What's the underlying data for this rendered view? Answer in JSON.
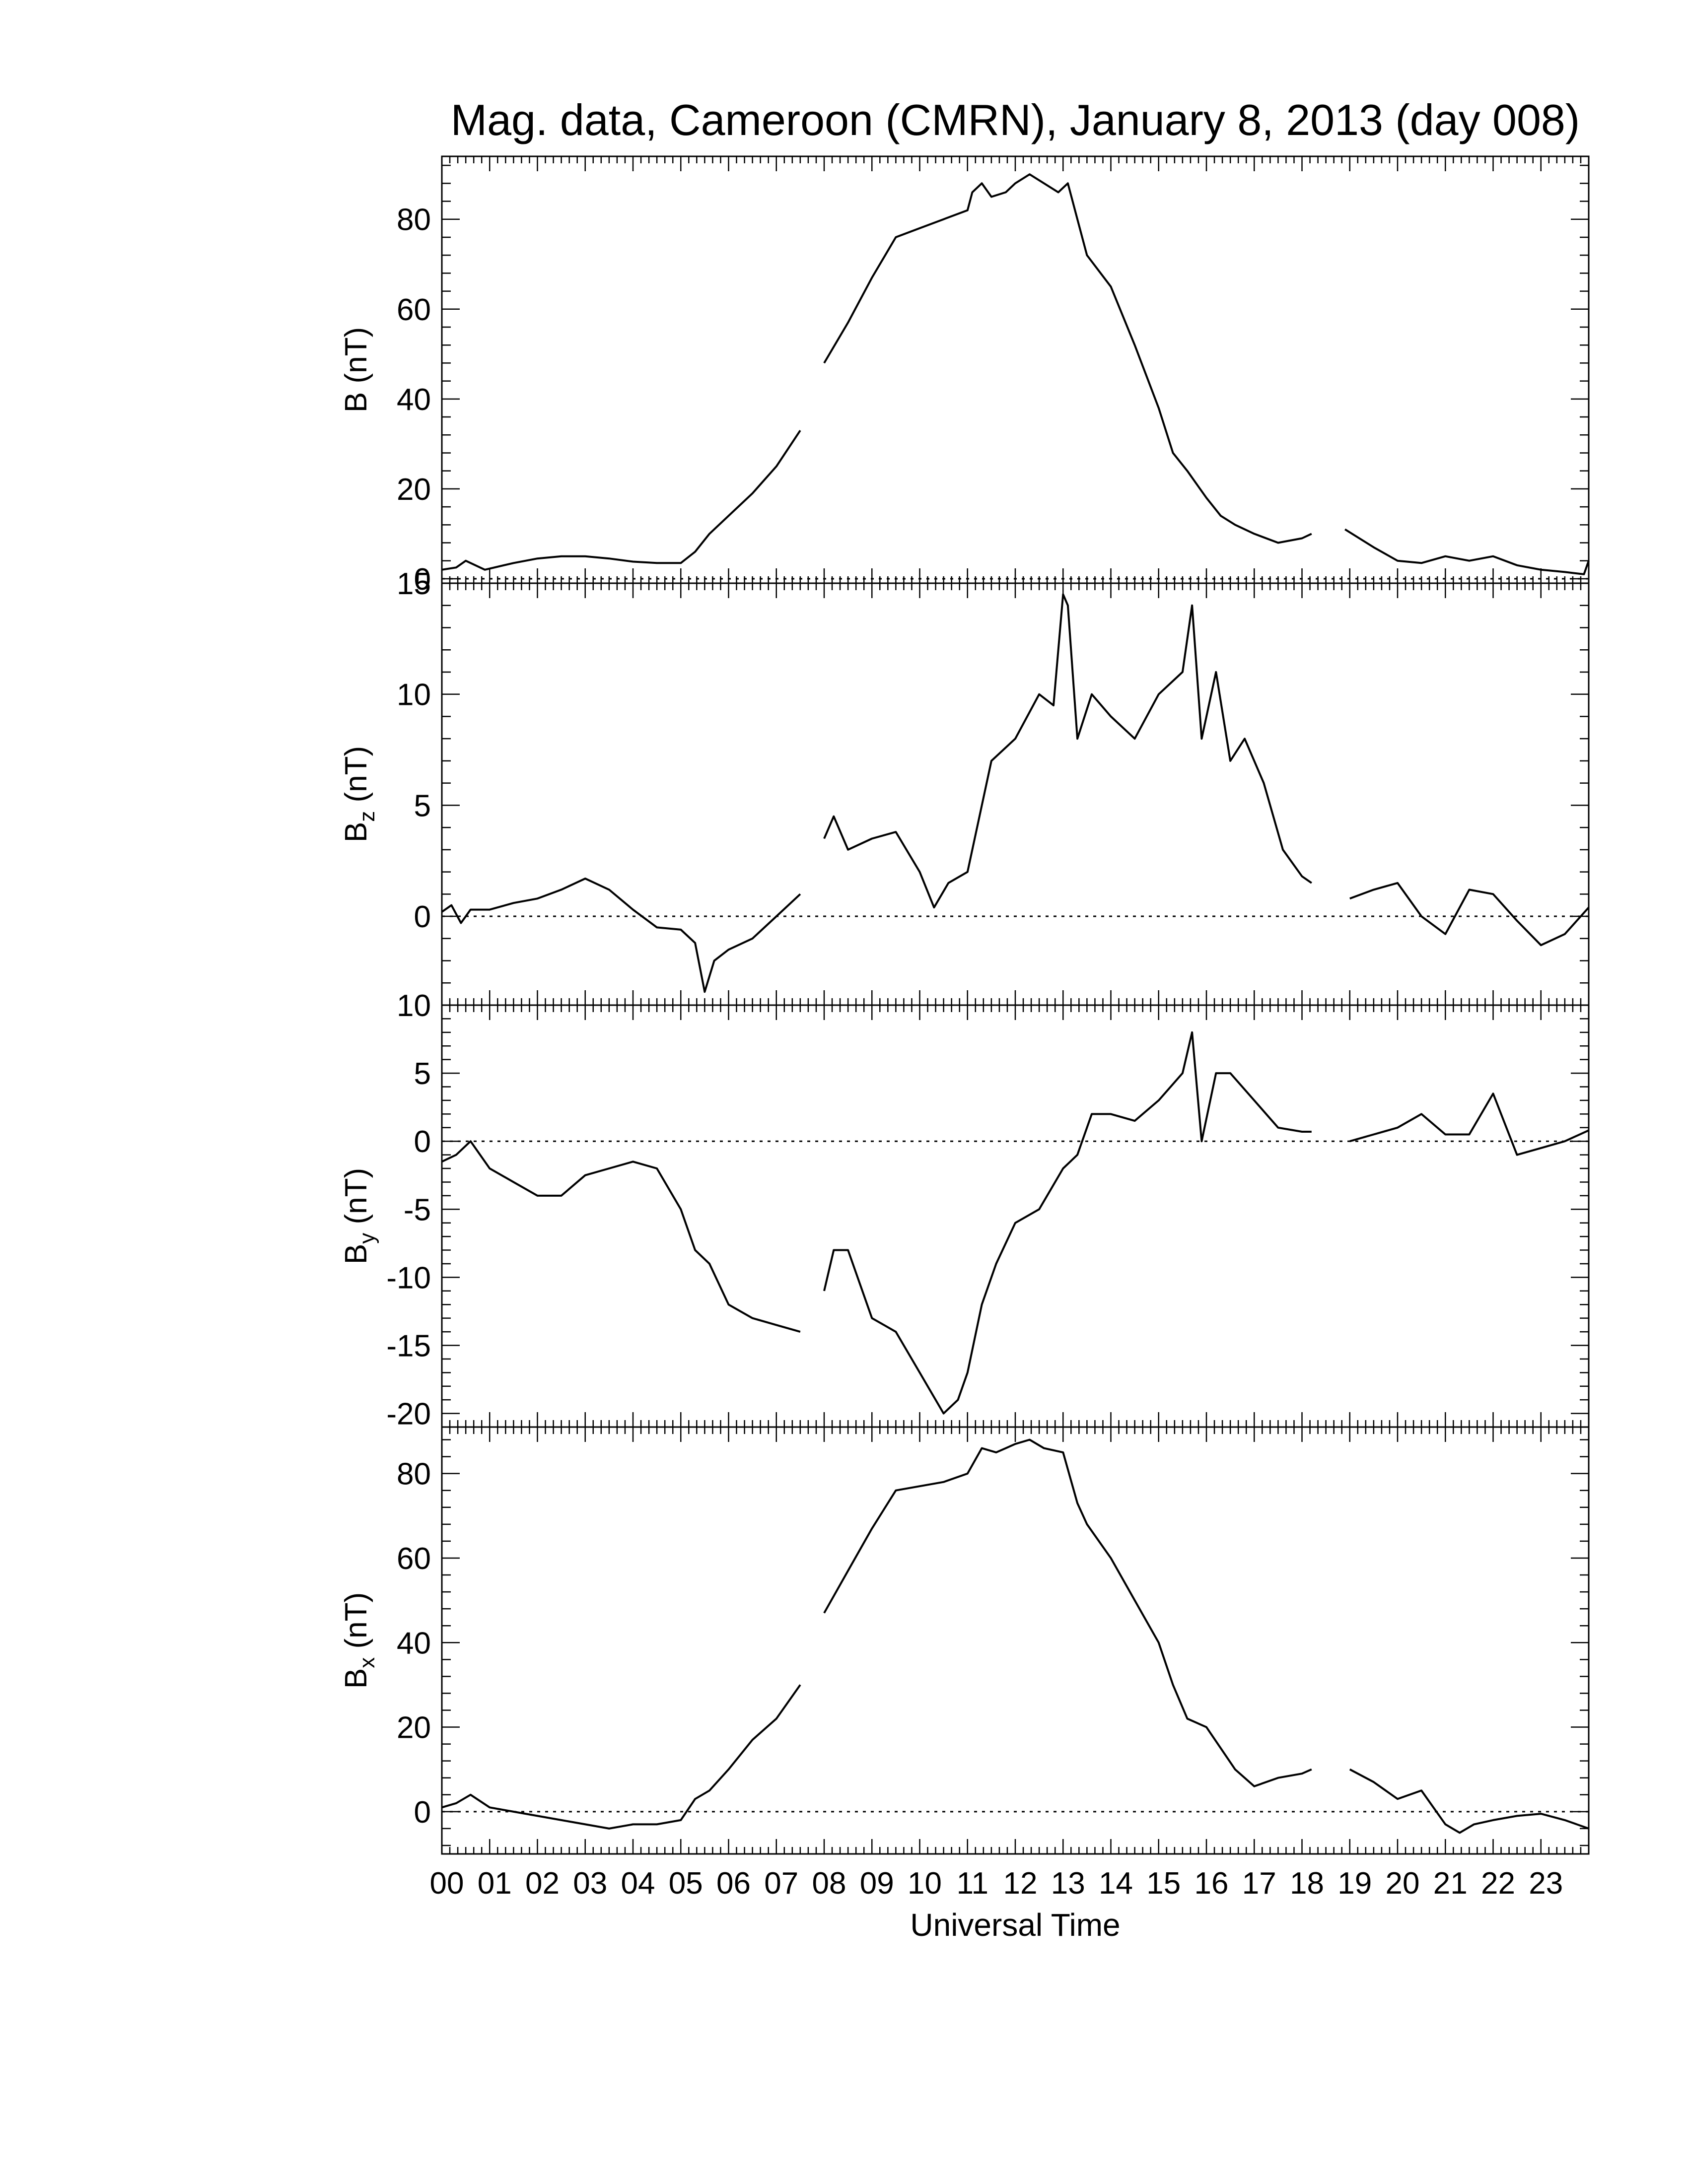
{
  "figure": {
    "title": "Mag. data, Cameroon (CMRN), January 8, 2013 (day 008)",
    "xlabel": "Universal Time",
    "x_tick_labels": [
      "00",
      "01",
      "02",
      "03",
      "04",
      "05",
      "06",
      "07",
      "08",
      "09",
      "10",
      "11",
      "12",
      "13",
      "14",
      "15",
      "16",
      "17",
      "18",
      "19",
      "20",
      "21",
      "22",
      "23"
    ],
    "line_color": "#000000",
    "zero_line": "dotted"
  },
  "chart_data": [
    {
      "type": "line",
      "panel": "B",
      "ylabel": "B (nT)",
      "ylim": [
        -1,
        94
      ],
      "y_ticks": [
        0,
        20,
        40,
        60,
        80
      ],
      "y_tick_labels": [
        "0",
        "20",
        "40",
        "60",
        "80"
      ],
      "x_unit": "hours UT",
      "xlim": [
        0,
        24
      ],
      "segments": [
        {
          "x": [
            0,
            0.3,
            0.5,
            0.9,
            1.5,
            2,
            2.5,
            3,
            3.5,
            4,
            4.5,
            5,
            5.3,
            5.6,
            6,
            6.5,
            7,
            7.5
          ],
          "y": [
            2,
            2.5,
            4,
            2,
            3.5,
            4.5,
            5,
            5,
            4.5,
            3.8,
            3.5,
            3.5,
            6,
            10,
            14,
            19,
            25,
            33
          ]
        },
        {
          "x": [
            8,
            8.5,
            9,
            9.5,
            10,
            10.5,
            11,
            11.1,
            11.3,
            11.5,
            11.8,
            12,
            12.3,
            12.6,
            12.9,
            13.1,
            13.3,
            13.5,
            14,
            14.5,
            15,
            15.3,
            15.6,
            16,
            16.3,
            16.6,
            17,
            17.5,
            18,
            18.2
          ],
          "y": [
            48,
            57,
            67,
            76,
            78,
            80,
            82,
            86,
            88,
            85,
            86,
            88,
            90,
            88,
            86,
            88,
            80,
            72,
            65,
            52,
            38,
            28,
            24,
            18,
            14,
            12,
            10,
            8,
            9,
            10
          ]
        },
        {
          "x": [
            18.9,
            19.5,
            20,
            20.5,
            21,
            21.5,
            22,
            22.5,
            23,
            23.5,
            23.9,
            24
          ],
          "y": [
            11,
            7,
            4,
            3.5,
            5,
            4,
            5,
            3,
            2,
            1.5,
            1,
            4
          ]
        }
      ]
    },
    {
      "type": "line",
      "panel": "Bz",
      "ylabel": "B",
      "ylabel_sub": "z",
      "ylabel_unit": " (nT)",
      "ylim": [
        -4,
        15
      ],
      "y_ticks": [
        0,
        5,
        10,
        15
      ],
      "y_tick_labels": [
        "0",
        "5",
        "10",
        "15"
      ],
      "x_unit": "hours UT",
      "xlim": [
        0,
        24
      ],
      "segments": [
        {
          "x": [
            0,
            0.2,
            0.4,
            0.6,
            1,
            1.5,
            2,
            2.5,
            3,
            3.5,
            4,
            4.5,
            5,
            5.3,
            5.5,
            5.7,
            6,
            6.5,
            7,
            7.5
          ],
          "y": [
            0.2,
            0.5,
            -0.3,
            0.3,
            0.3,
            0.6,
            0.8,
            1.2,
            1.7,
            1.2,
            0.3,
            -0.5,
            -0.6,
            -1.2,
            -3.4,
            -2,
            -1.5,
            -1,
            0,
            1
          ]
        },
        {
          "x": [
            8,
            8.2,
            8.5,
            9,
            9.5,
            10,
            10.3,
            10.6,
            11,
            11.5,
            12,
            12.5,
            12.8,
            13,
            13.1,
            13.3,
            13.6,
            14,
            14.5,
            15,
            15.5,
            15.7,
            15.9,
            16.2,
            16.5,
            16.8,
            17.2,
            17.6,
            18,
            18.2
          ],
          "y": [
            3.5,
            4.5,
            3,
            3.5,
            3.8,
            2,
            0.4,
            1.5,
            2,
            7,
            8,
            10,
            9.5,
            14.5,
            14,
            8,
            10,
            9,
            8,
            10,
            11,
            14,
            8,
            11,
            7,
            8,
            6,
            3,
            1.8,
            1.5
          ]
        },
        {
          "x": [
            19,
            19.5,
            20,
            20.5,
            21,
            21.5,
            22,
            22.5,
            23,
            23.5,
            24
          ],
          "y": [
            0.8,
            1.2,
            1.5,
            0,
            -0.8,
            1.2,
            1,
            -0.2,
            -1.3,
            -0.8,
            0.4
          ]
        }
      ]
    },
    {
      "type": "line",
      "panel": "By",
      "ylabel": "B",
      "ylabel_sub": "y",
      "ylabel_unit": " (nT)",
      "ylim": [
        -21,
        10
      ],
      "y_ticks": [
        -20,
        -15,
        -10,
        -5,
        0,
        5,
        10
      ],
      "y_tick_labels": [
        "-20",
        "-15",
        "-10",
        "-5",
        "0",
        "5",
        "10"
      ],
      "x_unit": "hours UT",
      "xlim": [
        0,
        24
      ],
      "segments": [
        {
          "x": [
            0,
            0.3,
            0.6,
            1,
            1.5,
            2,
            2.5,
            3,
            3.5,
            4,
            4.5,
            5,
            5.3,
            5.6,
            6,
            6.5,
            7,
            7.5
          ],
          "y": [
            -1.5,
            -1,
            0,
            -2,
            -3,
            -4,
            -4,
            -2.5,
            -2,
            -1.5,
            -2,
            -5,
            -8,
            -9,
            -12,
            -13,
            -13.5,
            -14
          ]
        },
        {
          "x": [
            8,
            8.2,
            8.5,
            9,
            9.5,
            10,
            10.5,
            10.8,
            11,
            11.3,
            11.6,
            12,
            12.5,
            13,
            13.3,
            13.6,
            14,
            14.5,
            15,
            15.5,
            15.7,
            15.9,
            16.2,
            16.5,
            17,
            17.5,
            18,
            18.2
          ],
          "y": [
            -11,
            -8,
            -8,
            -13,
            -14,
            -17,
            -20,
            -19,
            -17,
            -12,
            -9,
            -6,
            -5,
            -2,
            -1,
            2,
            2,
            1.5,
            3,
            5,
            8,
            0,
            5,
            5,
            3,
            1,
            0.7,
            0.7
          ]
        },
        {
          "x": [
            19,
            19.5,
            20,
            20.5,
            21,
            21.5,
            22,
            22.5,
            23,
            23.5,
            24
          ],
          "y": [
            0,
            0.5,
            1,
            2,
            0.5,
            0.5,
            3.5,
            -1,
            -0.5,
            0,
            0.8
          ]
        }
      ]
    },
    {
      "type": "line",
      "panel": "Bx",
      "ylabel": "B",
      "ylabel_sub": "x",
      "ylabel_unit": " (nT)",
      "ylim": [
        -10,
        91
      ],
      "y_ticks": [
        0,
        20,
        40,
        60,
        80
      ],
      "y_tick_labels": [
        "0",
        "20",
        "40",
        "60",
        "80"
      ],
      "x_unit": "hours UT",
      "xlim": [
        0,
        24
      ],
      "segments": [
        {
          "x": [
            0,
            0.3,
            0.6,
            1,
            1.5,
            2,
            2.5,
            3,
            3.5,
            4,
            4.5,
            5,
            5.3,
            5.6,
            6,
            6.5,
            7,
            7.5
          ],
          "y": [
            1,
            2,
            4,
            1,
            0,
            -1,
            -2,
            -3,
            -4,
            -3,
            -3,
            -2,
            3,
            5,
            10,
            17,
            22,
            30
          ]
        },
        {
          "x": [
            8,
            8.5,
            9,
            9.5,
            10,
            10.5,
            11,
            11.3,
            11.6,
            12,
            12.3,
            12.6,
            13,
            13.3,
            13.5,
            14,
            14.5,
            15,
            15.3,
            15.6,
            16,
            16.3,
            16.6,
            17,
            17.5,
            18,
            18.2
          ],
          "y": [
            47,
            57,
            67,
            76,
            77,
            78,
            80,
            86,
            85,
            87,
            88,
            86,
            85,
            73,
            68,
            60,
            50,
            40,
            30,
            22,
            20,
            15,
            10,
            6,
            8,
            9,
            10
          ]
        },
        {
          "x": [
            19,
            19.5,
            20,
            20.5,
            21,
            21.3,
            21.6,
            22,
            22.5,
            23,
            23.5,
            24
          ],
          "y": [
            10,
            7,
            3,
            5,
            -3,
            -5,
            -3,
            -2,
            -1,
            -0.5,
            -2,
            -4
          ]
        }
      ]
    }
  ]
}
